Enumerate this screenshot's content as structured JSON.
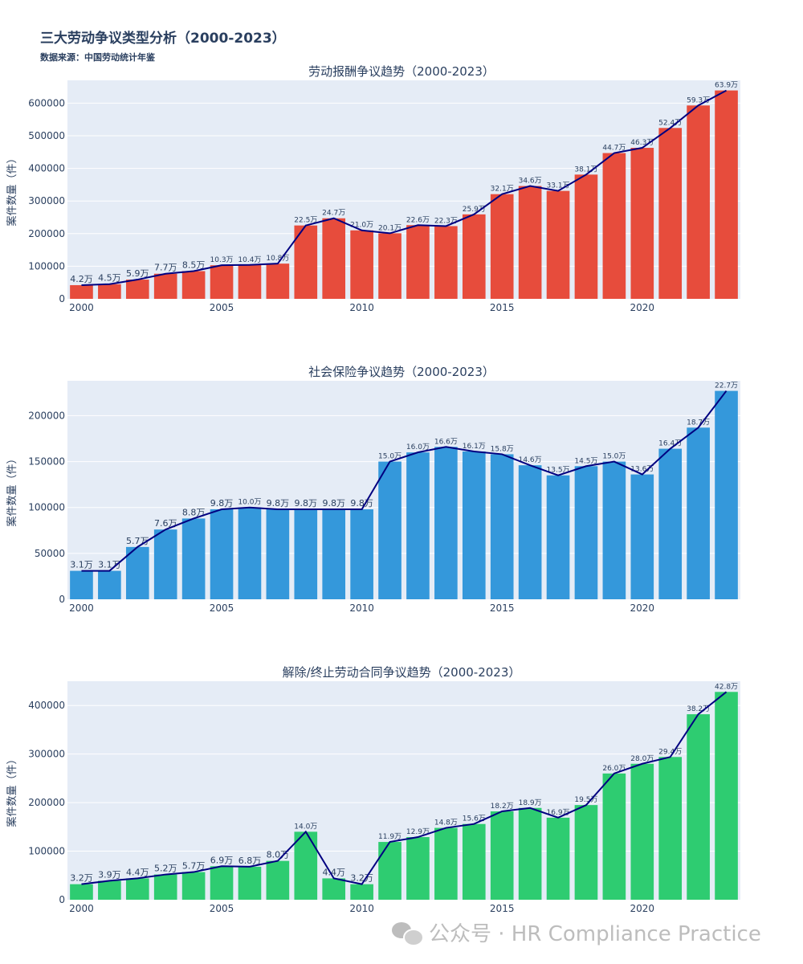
{
  "title": "三大劳动争议类型分析（2000-2023）",
  "subtitle": "数据来源：中国劳动统计年鉴",
  "watermark": "公众号 · HR Compliance Practice",
  "chart_data": [
    {
      "type": "bar",
      "title": "劳动报酬争议趋势（2000-2023）",
      "ylabel": "案件数量（件）",
      "color": "#e74c3c",
      "line_color": "#000080",
      "ylim": [
        0,
        670000
      ],
      "yticks": [
        0,
        100000,
        200000,
        300000,
        400000,
        500000,
        600000
      ],
      "x": [
        2000,
        2001,
        2002,
        2003,
        2004,
        2005,
        2006,
        2007,
        2008,
        2009,
        2010,
        2011,
        2012,
        2013,
        2014,
        2015,
        2016,
        2017,
        2018,
        2019,
        2020,
        2021,
        2022,
        2023
      ],
      "values": [
        42000,
        45000,
        59000,
        77000,
        85000,
        103000,
        104000,
        108000,
        225000,
        247000,
        210000,
        201000,
        226000,
        223000,
        259000,
        321000,
        346000,
        331000,
        381000,
        447000,
        463000,
        524000,
        593000,
        639000
      ],
      "labels": [
        "4.2万",
        "4.5万",
        "5.9万",
        "7.7万",
        "8.5万",
        "10.3万",
        "10.4万",
        "10.8万",
        "22.5万",
        "24.7万",
        "21.0万",
        "20.1万",
        "22.6万",
        "22.3万",
        "25.9万",
        "32.1万",
        "34.6万",
        "33.1万",
        "38.1万",
        "44.7万",
        "46.3万",
        "52.4万",
        "59.3万",
        "63.9万"
      ]
    },
    {
      "type": "bar",
      "title": "社会保险争议趋势（2000-2023）",
      "ylabel": "案件数量（件）",
      "color": "#3498db",
      "line_color": "#000080",
      "ylim": [
        0,
        238000
      ],
      "yticks": [
        0,
        50000,
        100000,
        150000,
        200000
      ],
      "x": [
        2000,
        2001,
        2002,
        2003,
        2004,
        2005,
        2006,
        2007,
        2008,
        2009,
        2010,
        2011,
        2012,
        2013,
        2014,
        2015,
        2016,
        2017,
        2018,
        2019,
        2020,
        2021,
        2022,
        2023
      ],
      "values": [
        31000,
        31000,
        57000,
        76000,
        88000,
        98000,
        100000,
        98000,
        98000,
        98000,
        98000,
        150000,
        160000,
        166000,
        161000,
        158000,
        146000,
        135000,
        145000,
        150000,
        136000,
        164000,
        187000,
        227000
      ],
      "labels": [
        "3.1万",
        "3.1万",
        "5.7万",
        "7.6万",
        "8.8万",
        "9.8万",
        "10.0万",
        "9.8万",
        "9.8万",
        "9.8万",
        "9.8万",
        "15.0万",
        "16.0万",
        "16.6万",
        "16.1万",
        "15.8万",
        "14.6万",
        "13.5万",
        "14.5万",
        "15.0万",
        "13.6万",
        "16.4万",
        "18.7万",
        "22.7万"
      ]
    },
    {
      "type": "bar",
      "title": "解除/终止劳动合同争议趋势（2000-2023）",
      "ylabel": "案件数量（件）",
      "color": "#2ecc71",
      "line_color": "#000080",
      "ylim": [
        0,
        450000
      ],
      "yticks": [
        0,
        100000,
        200000,
        300000,
        400000
      ],
      "x": [
        2000,
        2001,
        2002,
        2003,
        2004,
        2005,
        2006,
        2007,
        2008,
        2009,
        2010,
        2011,
        2012,
        2013,
        2014,
        2015,
        2016,
        2017,
        2018,
        2019,
        2020,
        2021,
        2022,
        2023
      ],
      "values": [
        32000,
        39000,
        44000,
        52000,
        57000,
        69000,
        68000,
        80000,
        140000,
        44000,
        32000,
        119000,
        129000,
        148000,
        156000,
        182000,
        189000,
        169000,
        195000,
        260000,
        280000,
        294000,
        382000,
        428000
      ],
      "labels": [
        "3.2万",
        "3.9万",
        "4.4万",
        "5.2万",
        "5.7万",
        "6.9万",
        "6.8万",
        "8.0万",
        "14.0万",
        "4.4万",
        "3.2万",
        "11.9万",
        "12.9万",
        "14.8万",
        "15.6万",
        "18.2万",
        "18.9万",
        "16.9万",
        "19.5万",
        "26.0万",
        "28.0万",
        "29.4万",
        "38.2万",
        "42.8万"
      ]
    }
  ]
}
